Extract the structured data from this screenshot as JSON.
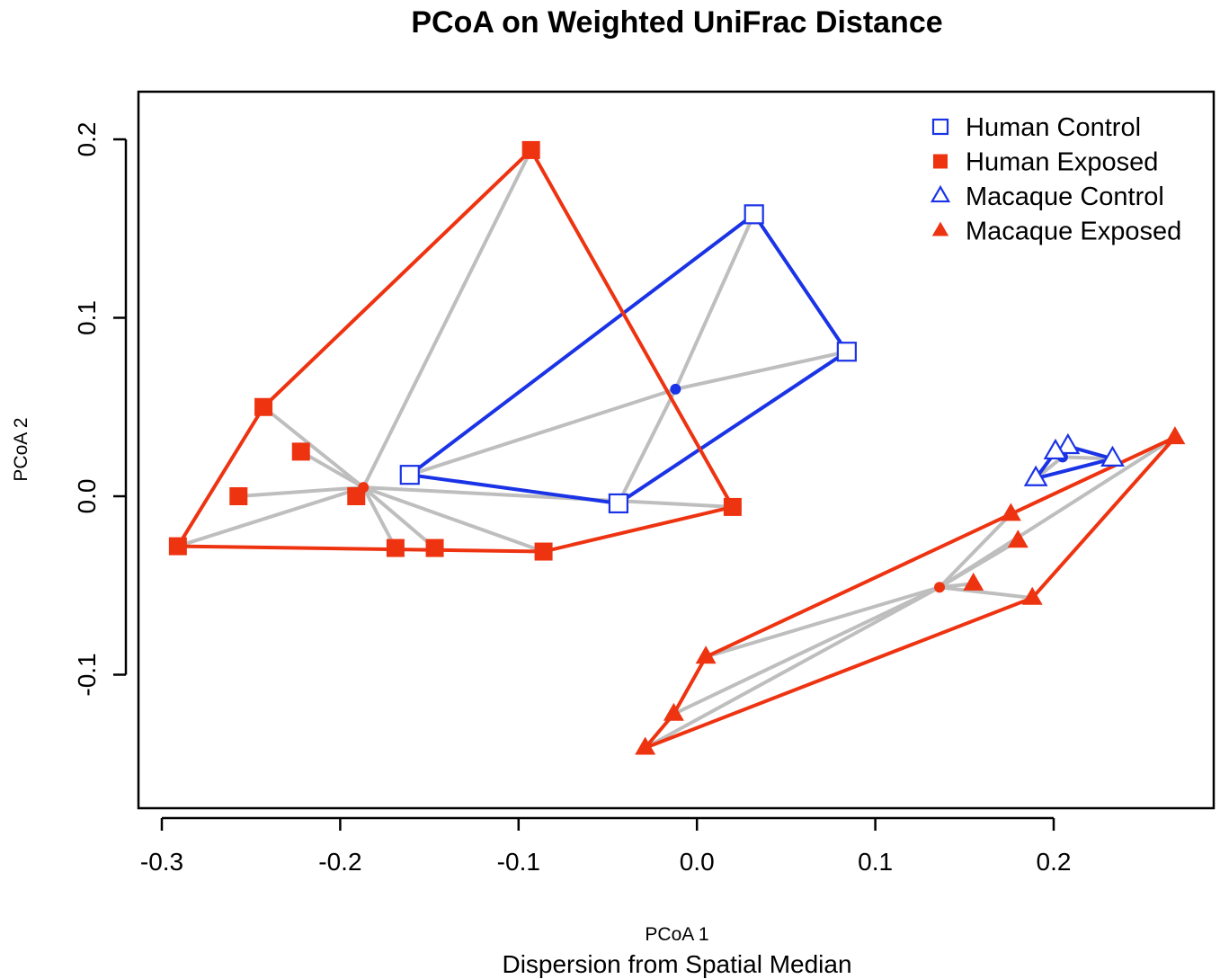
{
  "chart_data": {
    "type": "scatter",
    "title": "PCoA on Weighted UniFrac Distance",
    "xlabel": "PCoA 1",
    "ylabel": "PCoA 2",
    "sub_xlabel": "Dispersion from Spatial Median",
    "xlim": [
      -0.3,
      0.27
    ],
    "ylim": [
      -0.175,
      0.225
    ],
    "x_ticks": [
      -0.3,
      -0.2,
      -0.1,
      0.0,
      0.1,
      0.2
    ],
    "x_tick_labels": [
      "-0.3",
      "-0.2",
      "-0.1",
      "0.0",
      "0.1",
      "0.2"
    ],
    "y_ticks": [
      -0.1,
      0.0,
      0.1,
      0.2
    ],
    "y_tick_labels": [
      "-0.1",
      "0.0",
      "0.1",
      "0.2"
    ],
    "grid": false,
    "legend_position": "top-right",
    "series": [
      {
        "name": "Human Control",
        "color": "#1a33e6",
        "marker": "square-open",
        "centroid": [
          -0.012,
          0.06
        ],
        "points": [
          [
            0.032,
            0.158
          ],
          [
            0.084,
            0.081
          ],
          [
            -0.161,
            0.012
          ],
          [
            -0.044,
            -0.004
          ]
        ],
        "hull": [
          [
            0.032,
            0.158
          ],
          [
            0.084,
            0.081
          ],
          [
            -0.044,
            -0.004
          ],
          [
            -0.161,
            0.012
          ]
        ]
      },
      {
        "name": "Human Exposed",
        "color": "#ee3311",
        "marker": "square-filled",
        "centroid": [
          -0.187,
          0.005
        ],
        "points": [
          [
            -0.093,
            0.194
          ],
          [
            -0.243,
            0.05
          ],
          [
            -0.222,
            0.025
          ],
          [
            -0.257,
            0.0
          ],
          [
            -0.191,
            0.0
          ],
          [
            -0.291,
            -0.028
          ],
          [
            -0.169,
            -0.029
          ],
          [
            -0.147,
            -0.029
          ],
          [
            -0.086,
            -0.031
          ],
          [
            0.02,
            -0.006
          ]
        ],
        "hull": [
          [
            -0.093,
            0.194
          ],
          [
            0.02,
            -0.006
          ],
          [
            -0.086,
            -0.031
          ],
          [
            -0.291,
            -0.028
          ],
          [
            -0.243,
            0.05
          ]
        ]
      },
      {
        "name": "Macaque Control",
        "color": "#1a33e6",
        "marker": "triangle-open",
        "centroid": [
          0.205,
          0.022
        ],
        "points": [
          [
            0.208,
            0.028
          ],
          [
            0.201,
            0.025
          ],
          [
            0.233,
            0.021
          ],
          [
            0.19,
            0.01
          ]
        ],
        "hull": [
          [
            0.208,
            0.028
          ],
          [
            0.233,
            0.021
          ],
          [
            0.19,
            0.01
          ],
          [
            0.201,
            0.025
          ]
        ]
      },
      {
        "name": "Macaque Exposed",
        "color": "#ee3311",
        "marker": "triangle-filled",
        "centroid": [
          0.136,
          -0.051
        ],
        "points": [
          [
            0.268,
            0.033
          ],
          [
            0.176,
            -0.01
          ],
          [
            0.18,
            -0.025
          ],
          [
            0.155,
            -0.049
          ],
          [
            0.188,
            -0.057
          ],
          [
            0.005,
            -0.09
          ],
          [
            -0.013,
            -0.122
          ],
          [
            -0.029,
            -0.141
          ]
        ],
        "hull": [
          [
            0.268,
            0.033
          ],
          [
            0.188,
            -0.057
          ],
          [
            -0.029,
            -0.141
          ],
          [
            -0.013,
            -0.122
          ],
          [
            0.005,
            -0.09
          ],
          [
            0.176,
            -0.01
          ]
        ]
      }
    ]
  },
  "colors": {
    "spoke": "#bebebe",
    "text": "#000000"
  }
}
